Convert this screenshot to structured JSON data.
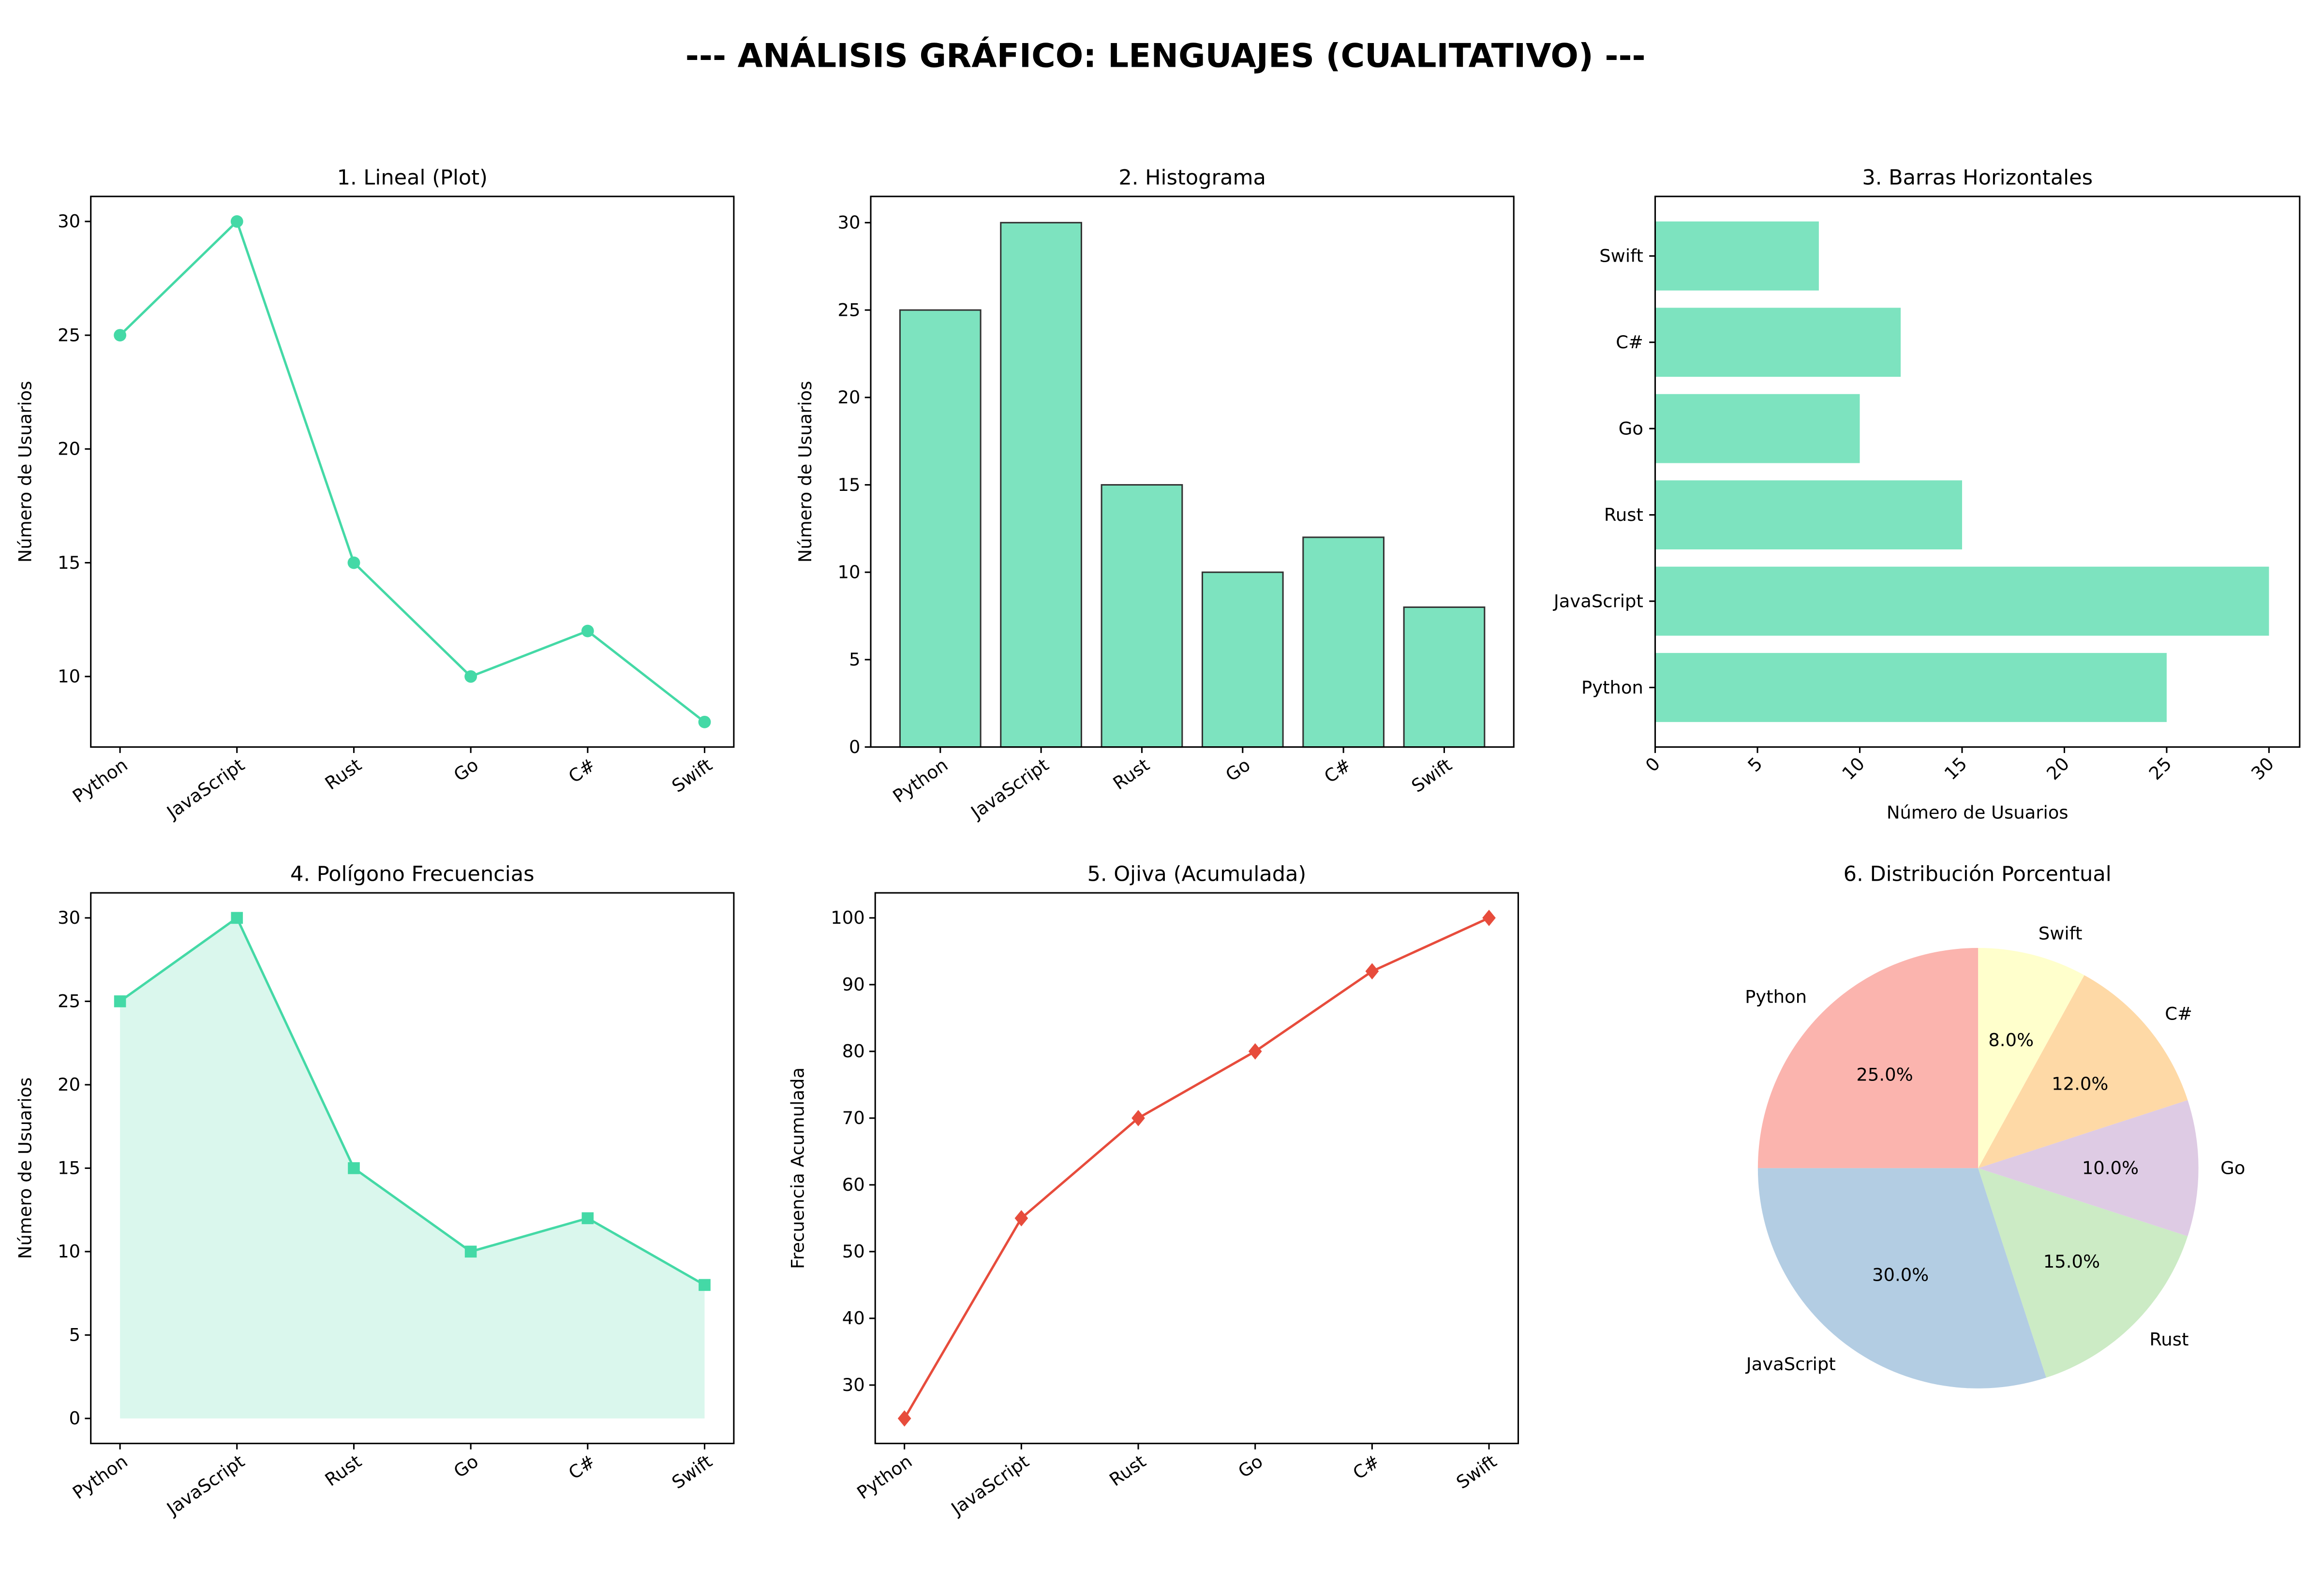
{
  "title": "--- ANÁLISIS GRÁFICO: LENGUAJES (CUALITATIVO) ---",
  "colors": {
    "green": "#44d9a6",
    "green_bar": "#7de3bf",
    "red": "#e74c3c",
    "pie": [
      "#fbb4ae",
      "#b3cde3",
      "#ccebc5",
      "#decbe4",
      "#fed9a6",
      "#ffffcc"
    ]
  },
  "chart_data": [
    {
      "type": "line",
      "title": "1. Lineal (Plot)",
      "categories": [
        "Python",
        "JavaScript",
        "Rust",
        "Go",
        "C#",
        "Swift"
      ],
      "values": [
        25,
        30,
        15,
        10,
        12,
        8
      ],
      "xlabel": "",
      "ylabel": "Número de Usuarios",
      "ylim": [
        6.9,
        31.1
      ],
      "yticks": [
        10,
        15,
        20,
        25,
        30
      ],
      "marker": "circle",
      "grid": false
    },
    {
      "type": "bar",
      "title": "2. Histograma",
      "categories": [
        "Python",
        "JavaScript",
        "Rust",
        "Go",
        "C#",
        "Swift"
      ],
      "values": [
        25,
        30,
        15,
        10,
        12,
        8
      ],
      "xlabel": "",
      "ylabel": "Número de Usuarios",
      "ylim": [
        0,
        31.5
      ],
      "yticks": [
        0,
        5,
        10,
        15,
        20,
        25,
        30
      ],
      "grid": false
    },
    {
      "type": "bar",
      "orientation": "horizontal",
      "title": "3. Barras Horizontales",
      "categories": [
        "Python",
        "JavaScript",
        "Rust",
        "Go",
        "C#",
        "Swift"
      ],
      "values": [
        25,
        30,
        15,
        10,
        12,
        8
      ],
      "xlabel": "Número de Usuarios",
      "ylabel": "",
      "xlim": [
        0,
        31.5
      ],
      "xticks": [
        0,
        5,
        10,
        15,
        20,
        25,
        30
      ],
      "grid": false
    },
    {
      "type": "area",
      "title": "4. Polígono Frecuencias",
      "categories": [
        "Python",
        "JavaScript",
        "Rust",
        "Go",
        "C#",
        "Swift"
      ],
      "values": [
        25,
        30,
        15,
        10,
        12,
        8
      ],
      "xlabel": "",
      "ylabel": "Número de Usuarios",
      "ylim": [
        -1.5,
        31.5
      ],
      "yticks": [
        0,
        5,
        10,
        15,
        20,
        25,
        30
      ],
      "marker": "square",
      "grid": false
    },
    {
      "type": "line",
      "title": "5. Ojiva (Acumulada)",
      "categories": [
        "Python",
        "JavaScript",
        "Rust",
        "Go",
        "C#",
        "Swift"
      ],
      "values": [
        25,
        55,
        70,
        80,
        92,
        100
      ],
      "xlabel": "",
      "ylabel": "Frecuencia Acumulada",
      "ylim": [
        21.25,
        103.75
      ],
      "yticks": [
        30,
        40,
        50,
        60,
        70,
        80,
        90,
        100
      ],
      "marker": "diamond",
      "grid": false
    },
    {
      "type": "pie",
      "title": "6. Distribución Porcentual",
      "categories": [
        "Python",
        "JavaScript",
        "Rust",
        "Go",
        "C#",
        "Swift"
      ],
      "values": [
        25,
        30,
        15,
        10,
        12,
        8
      ],
      "pct_labels": [
        "25.0%",
        "30.0%",
        "15.0%",
        "10.0%",
        "12.0%",
        "8.0%"
      ]
    }
  ]
}
